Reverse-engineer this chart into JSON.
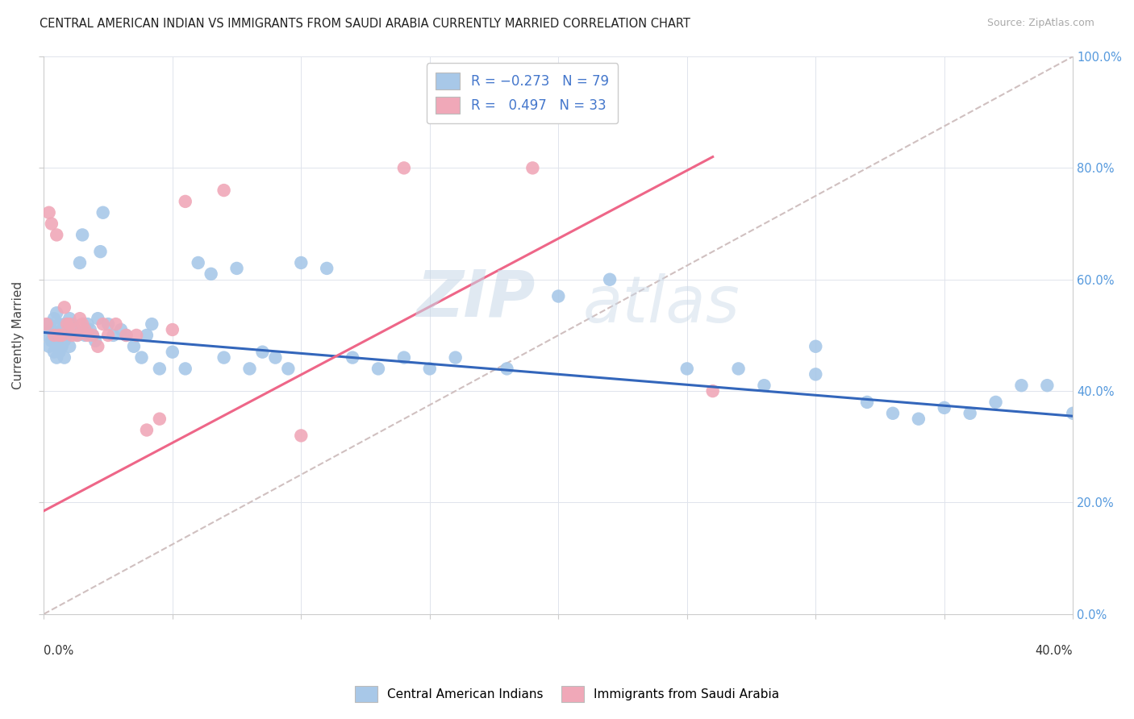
{
  "title": "CENTRAL AMERICAN INDIAN VS IMMIGRANTS FROM SAUDI ARABIA CURRENTLY MARRIED CORRELATION CHART",
  "source": "Source: ZipAtlas.com",
  "ylabel": "Currently Married",
  "blue_color": "#a8c8e8",
  "pink_color": "#f0a8b8",
  "blue_line_color": "#3366bb",
  "pink_line_color": "#ee6688",
  "ref_line_color": "#d0c0c0",
  "watermark_zip": "ZIP",
  "watermark_atlas": "atlas",
  "x_min": 0.0,
  "x_max": 0.4,
  "y_min": 0.0,
  "y_max": 1.0,
  "blue_trend_x0": 0.0,
  "blue_trend_y0": 0.505,
  "blue_trend_x1": 0.4,
  "blue_trend_y1": 0.355,
  "pink_trend_x0": 0.0,
  "pink_trend_y0": 0.185,
  "pink_trend_x1": 0.26,
  "pink_trend_y1": 0.82,
  "blue_scatter_x": [
    0.001,
    0.002,
    0.002,
    0.003,
    0.003,
    0.004,
    0.004,
    0.005,
    0.005,
    0.005,
    0.006,
    0.006,
    0.006,
    0.007,
    0.007,
    0.007,
    0.008,
    0.008,
    0.008,
    0.009,
    0.009,
    0.01,
    0.01,
    0.011,
    0.012,
    0.013,
    0.014,
    0.015,
    0.016,
    0.017,
    0.018,
    0.019,
    0.02,
    0.021,
    0.022,
    0.023,
    0.025,
    0.027,
    0.03,
    0.032,
    0.035,
    0.038,
    0.04,
    0.042,
    0.045,
    0.05,
    0.055,
    0.06,
    0.065,
    0.07,
    0.075,
    0.08,
    0.085,
    0.09,
    0.095,
    0.1,
    0.11,
    0.12,
    0.13,
    0.14,
    0.15,
    0.16,
    0.18,
    0.2,
    0.22,
    0.25,
    0.27,
    0.3,
    0.32,
    0.33,
    0.34,
    0.35,
    0.36,
    0.37,
    0.38,
    0.39,
    0.4,
    0.3,
    0.28
  ],
  "blue_scatter_y": [
    0.5,
    0.48,
    0.52,
    0.49,
    0.51,
    0.47,
    0.53,
    0.46,
    0.5,
    0.54,
    0.47,
    0.52,
    0.49,
    0.48,
    0.51,
    0.5,
    0.46,
    0.52,
    0.49,
    0.51,
    0.5,
    0.53,
    0.48,
    0.52,
    0.51,
    0.5,
    0.63,
    0.68,
    0.5,
    0.52,
    0.51,
    0.5,
    0.49,
    0.53,
    0.65,
    0.72,
    0.52,
    0.5,
    0.51,
    0.5,
    0.48,
    0.46,
    0.5,
    0.52,
    0.44,
    0.47,
    0.44,
    0.63,
    0.61,
    0.46,
    0.62,
    0.44,
    0.47,
    0.46,
    0.44,
    0.63,
    0.62,
    0.46,
    0.44,
    0.46,
    0.44,
    0.46,
    0.44,
    0.57,
    0.6,
    0.44,
    0.44,
    0.43,
    0.38,
    0.36,
    0.35,
    0.37,
    0.36,
    0.38,
    0.41,
    0.41,
    0.36,
    0.48,
    0.41
  ],
  "pink_scatter_x": [
    0.001,
    0.002,
    0.003,
    0.004,
    0.005,
    0.006,
    0.007,
    0.008,
    0.009,
    0.01,
    0.011,
    0.012,
    0.013,
    0.014,
    0.015,
    0.016,
    0.017,
    0.019,
    0.021,
    0.023,
    0.025,
    0.028,
    0.032,
    0.036,
    0.04,
    0.045,
    0.05,
    0.055,
    0.07,
    0.1,
    0.14,
    0.19,
    0.26
  ],
  "pink_scatter_y": [
    0.52,
    0.72,
    0.7,
    0.5,
    0.68,
    0.5,
    0.5,
    0.55,
    0.52,
    0.52,
    0.5,
    0.51,
    0.5,
    0.53,
    0.52,
    0.51,
    0.5,
    0.5,
    0.48,
    0.52,
    0.5,
    0.52,
    0.5,
    0.5,
    0.33,
    0.35,
    0.51,
    0.74,
    0.76,
    0.32,
    0.8,
    0.8,
    0.4
  ]
}
